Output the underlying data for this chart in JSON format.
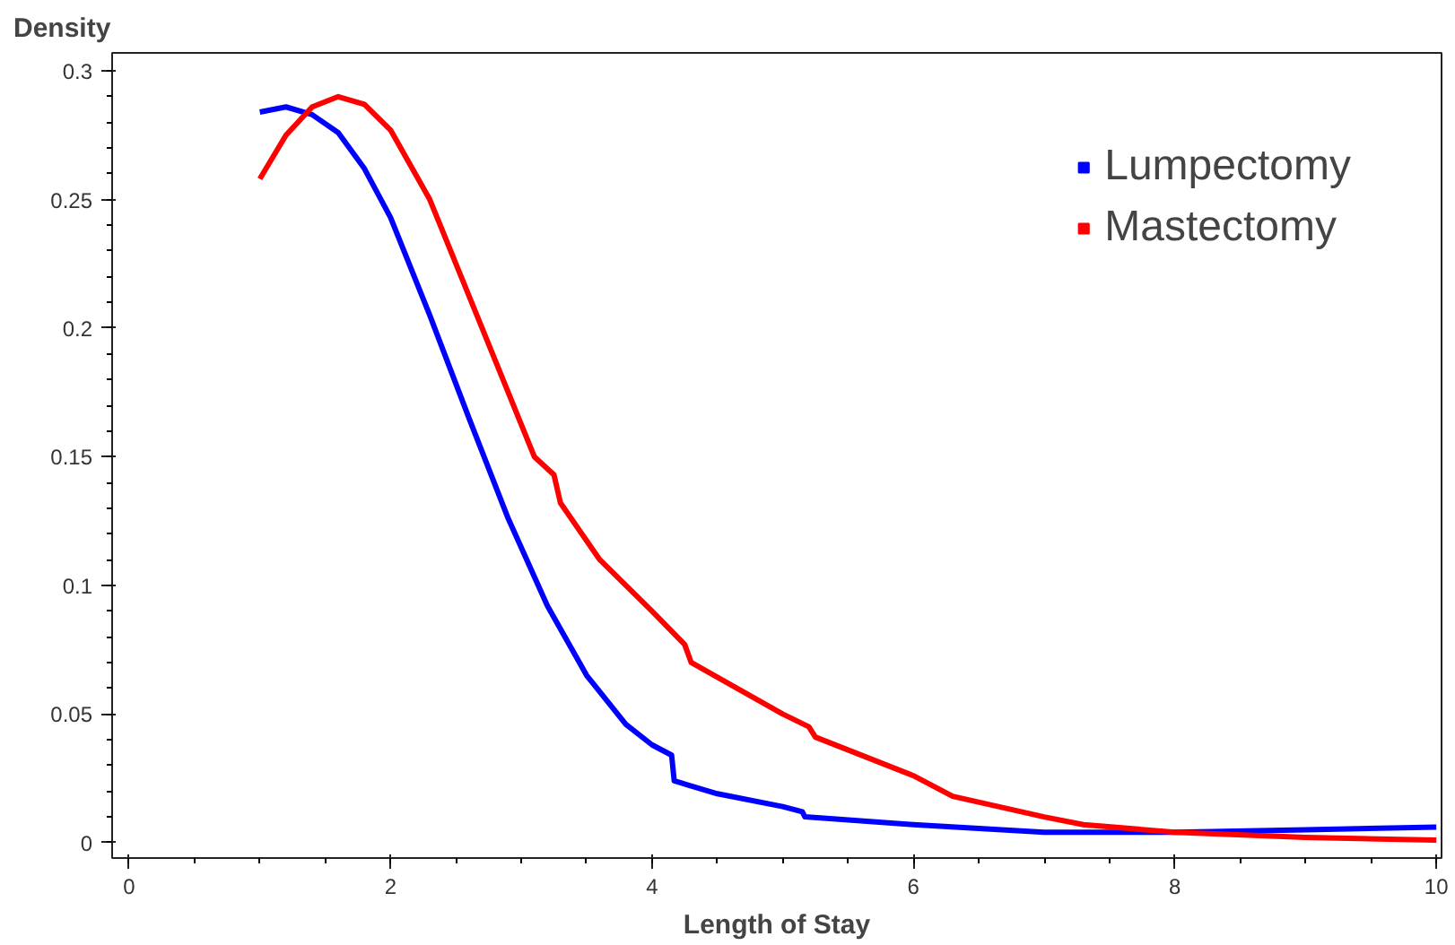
{
  "chart_data": {
    "type": "line",
    "xlabel": "Length of Stay",
    "ylabel": "Density",
    "xlim": [
      -0.13,
      10.04
    ],
    "ylim": [
      -0.006,
      0.307
    ],
    "xticks": [
      0,
      2,
      4,
      6,
      8,
      10
    ],
    "yticks": [
      0,
      0.05,
      0.1,
      0.15,
      0.2,
      0.25,
      0.3
    ],
    "grid": false,
    "legend": "top right",
    "marker": "none",
    "line_style": "solid",
    "series": [
      {
        "name": "Lumpectomy",
        "color": "#0000ff",
        "x": [
          1.0,
          1.2,
          1.4,
          1.6,
          1.8,
          2.0,
          2.3,
          2.6,
          2.9,
          3.2,
          3.5,
          3.8,
          4.0,
          4.15,
          4.17,
          4.5,
          5.0,
          5.15,
          5.17,
          6.0,
          7.0,
          8.0,
          9.0,
          10.0
        ],
        "values": [
          0.284,
          0.286,
          0.283,
          0.276,
          0.262,
          0.243,
          0.205,
          0.165,
          0.126,
          0.092,
          0.065,
          0.046,
          0.038,
          0.034,
          0.024,
          0.019,
          0.014,
          0.012,
          0.01,
          0.007,
          0.004,
          0.004,
          0.005,
          0.006
        ]
      },
      {
        "name": "Mastectomy",
        "color": "#ff0000",
        "x": [
          1.0,
          1.2,
          1.4,
          1.6,
          1.8,
          2.0,
          2.3,
          2.7,
          3.1,
          3.25,
          3.3,
          3.6,
          4.0,
          4.25,
          4.3,
          5.0,
          5.2,
          5.25,
          6.0,
          6.3,
          7.0,
          7.3,
          8.0,
          9.0,
          10.0
        ],
        "values": [
          0.258,
          0.275,
          0.286,
          0.29,
          0.287,
          0.277,
          0.25,
          0.2,
          0.15,
          0.143,
          0.132,
          0.11,
          0.09,
          0.077,
          0.07,
          0.05,
          0.045,
          0.041,
          0.026,
          0.018,
          0.01,
          0.007,
          0.004,
          0.002,
          0.001
        ]
      }
    ]
  }
}
